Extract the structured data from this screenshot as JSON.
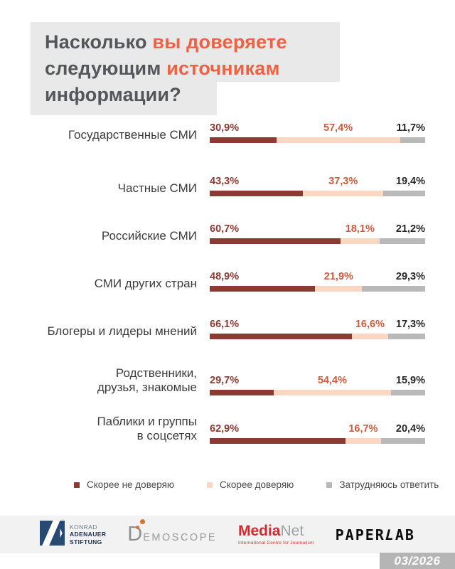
{
  "title": {
    "lines": [
      {
        "segments": [
          {
            "text": "Насколько ",
            "accent": false
          },
          {
            "text": "вы доверяете",
            "accent": true
          }
        ]
      },
      {
        "segments": [
          {
            "text": "следующим ",
            "accent": false
          },
          {
            "text": "источникам",
            "accent": true
          }
        ]
      },
      {
        "segments": [
          {
            "text": "информации?",
            "accent": false
          }
        ]
      }
    ]
  },
  "chart_data": {
    "type": "bar",
    "variant": "horizontal-stacked",
    "unit": "percent",
    "xlim": [
      0,
      100
    ],
    "grid": false,
    "legend_position": "bottom",
    "categories": [
      [
        "Государственные СМИ"
      ],
      [
        "Частные СМИ"
      ],
      [
        "Российские СМИ"
      ],
      [
        "СМИ других стран"
      ],
      [
        "Блогеры и лидеры мнений"
      ],
      [
        "Родственники,",
        "друзья, знакомые"
      ],
      [
        "Паблики и группы",
        "в соцсетях"
      ]
    ],
    "series": [
      {
        "name": "Скорее не доверяю",
        "color": "#8d3a32",
        "values": [
          30.9,
          43.3,
          60.7,
          48.9,
          66.1,
          29.7,
          62.9
        ]
      },
      {
        "name": "Скорее доверяю",
        "color": "#f9d7c2",
        "values": [
          57.4,
          37.3,
          18.1,
          21.9,
          16.6,
          54.4,
          16.7
        ]
      },
      {
        "name": "Затрудняюсь ответить",
        "color": "#b9b9b9",
        "values": [
          11.7,
          19.4,
          21.2,
          29.3,
          17.3,
          15.9,
          20.4
        ]
      }
    ],
    "value_labels": [
      [
        "30,9%",
        "57,4%",
        "11,7%"
      ],
      [
        "43,3%",
        "37,3%",
        "19,4%"
      ],
      [
        "60,7%",
        "18,1%",
        "21,2%"
      ],
      [
        "48,9%",
        "21,9%",
        "29,3%"
      ],
      [
        "66,1%",
        "16,6%",
        "17,3%"
      ],
      [
        "29,7%",
        "54,4%",
        "15,9%"
      ],
      [
        "62,9%",
        "16,7%",
        "20,4%"
      ]
    ],
    "value_label_colors": [
      "#8d3a32",
      "#cd5b3c",
      "#262626"
    ]
  },
  "footer": {
    "logos": {
      "kas": {
        "lines": [
          "KONRAD",
          "ADENAUER",
          "STIFTUNG"
        ]
      },
      "demoscope": {
        "initial": "D",
        "rest": "EMOSCOPE"
      },
      "medianet": {
        "part1": "Media",
        "part2": "Net",
        "tagline": "International Centre for Journalism"
      },
      "paperlab": {
        "pre": "PAPER",
        "slanted": "L",
        "post": "AB"
      }
    },
    "date_badge": "03/2026"
  },
  "colors": {
    "accent_orange": "#ee6243",
    "title_dark": "#54565a",
    "title_bg": "#e9e9e9",
    "footer_bg": "#f2f2f2",
    "badge_bg": "#b5b5b5"
  }
}
